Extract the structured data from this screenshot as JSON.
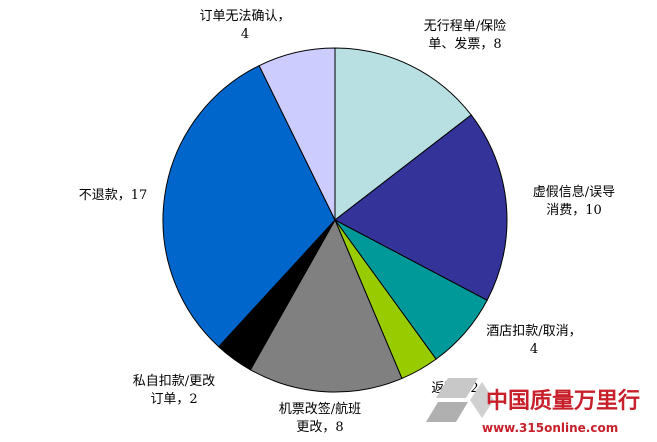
{
  "chart_data": {
    "type": "pie",
    "title": "",
    "slices": [
      {
        "label_lines": [
          "无行程单/保险",
          "单、发票，8"
        ],
        "value": 8,
        "color": "#b8e0e2"
      },
      {
        "label_lines": [
          "虚假信息/误导",
          "消费，10"
        ],
        "value": 10,
        "color": "#333399"
      },
      {
        "label_lines": [
          "酒店扣款/取消，",
          "4"
        ],
        "value": 4,
        "color": "#009999"
      },
      {
        "label_lines": [
          "返现，2"
        ],
        "value": 2,
        "color": "#99cc00"
      },
      {
        "label_lines": [
          "机票改签/航班",
          "更改，8"
        ],
        "value": 8,
        "color": "#808080"
      },
      {
        "label_lines": [
          "私自扣款/更改",
          "订单，2"
        ],
        "value": 2,
        "color": "#000000"
      },
      {
        "label_lines": [
          "不退款，17"
        ],
        "value": 17,
        "color": "#0066cc"
      },
      {
        "label_lines": [
          "订单无法确认，",
          "4"
        ],
        "value": 4,
        "color": "#ccccff"
      }
    ],
    "legend": "none",
    "start_angle_deg": 0,
    "direction": "clockwise"
  },
  "watermark": {
    "text": "中国质量万里行",
    "url": "www.315online.com",
    "color": "#c8202a"
  }
}
